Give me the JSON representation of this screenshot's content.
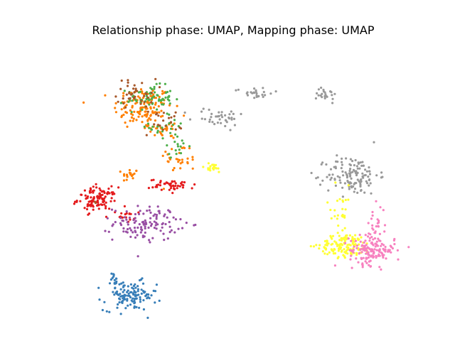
{
  "chart_data": {
    "type": "scatter",
    "title": "Relationship phase: UMAP, Mapping phase: UMAP",
    "xlabel": "",
    "ylabel": "",
    "axes_visible": false,
    "grid": false,
    "legend": "none",
    "point_size": "small",
    "xlim": [
      0,
      1
    ],
    "ylim": [
      0,
      1
    ],
    "series": [
      {
        "color": "#ff7f00",
        "clusters": [
          {
            "cx": 0.22,
            "cy": 0.76,
            "sx": 0.045,
            "sy": 0.045,
            "n": 130
          },
          {
            "cx": 0.29,
            "cy": 0.67,
            "sx": 0.03,
            "sy": 0.02,
            "n": 25
          },
          {
            "cx": 0.33,
            "cy": 0.55,
            "sx": 0.03,
            "sy": 0.03,
            "n": 30
          },
          {
            "cx": 0.18,
            "cy": 0.48,
            "sx": 0.012,
            "sy": 0.015,
            "n": 18
          }
        ]
      },
      {
        "color": "#4daf4a",
        "clusters": [
          {
            "cx": 0.24,
            "cy": 0.8,
            "sx": 0.035,
            "sy": 0.025,
            "n": 70
          },
          {
            "cx": 0.3,
            "cy": 0.68,
            "sx": 0.03,
            "sy": 0.03,
            "n": 25
          },
          {
            "cx": 0.32,
            "cy": 0.6,
            "sx": 0.02,
            "sy": 0.02,
            "n": 15
          }
        ]
      },
      {
        "color": "#a65628",
        "clusters": [
          {
            "cx": 0.2,
            "cy": 0.82,
            "sx": 0.03,
            "sy": 0.03,
            "n": 40
          },
          {
            "cx": 0.28,
            "cy": 0.7,
            "sx": 0.03,
            "sy": 0.03,
            "n": 20
          },
          {
            "cx": 0.08,
            "cy": 0.37,
            "sx": 0.01,
            "sy": 0.02,
            "n": 8
          }
        ]
      },
      {
        "color": "#e41a1c",
        "clusters": [
          {
            "cx": 0.08,
            "cy": 0.38,
            "sx": 0.03,
            "sy": 0.025,
            "n": 110
          },
          {
            "cx": 0.31,
            "cy": 0.44,
            "sx": 0.035,
            "sy": 0.012,
            "n": 45
          },
          {
            "cx": 0.17,
            "cy": 0.31,
            "sx": 0.012,
            "sy": 0.012,
            "n": 15
          }
        ]
      },
      {
        "color": "#984ea3",
        "clusters": [
          {
            "cx": 0.23,
            "cy": 0.28,
            "sx": 0.05,
            "sy": 0.035,
            "n": 120
          }
        ]
      },
      {
        "color": "#377eb8",
        "clusters": [
          {
            "cx": 0.18,
            "cy": -0.02,
            "sx": 0.04,
            "sy": 0.03,
            "n": 120
          },
          {
            "cx": 0.13,
            "cy": 0.03,
            "sx": 0.008,
            "sy": 0.03,
            "n": 15
          }
        ]
      },
      {
        "color": "#999999",
        "clusters": [
          {
            "cx": 0.45,
            "cy": 0.72,
            "sx": 0.04,
            "sy": 0.02,
            "n": 40
          },
          {
            "cx": 0.56,
            "cy": 0.82,
            "sx": 0.03,
            "sy": 0.012,
            "n": 25
          },
          {
            "cx": 0.78,
            "cy": 0.82,
            "sx": 0.015,
            "sy": 0.02,
            "n": 22
          },
          {
            "cx": 0.86,
            "cy": 0.48,
            "sx": 0.04,
            "sy": 0.04,
            "n": 130
          }
        ]
      },
      {
        "color": "#ffff33",
        "clusters": [
          {
            "cx": 0.43,
            "cy": 0.51,
            "sx": 0.02,
            "sy": 0.01,
            "n": 20
          },
          {
            "cx": 0.84,
            "cy": 0.19,
            "sx": 0.04,
            "sy": 0.025,
            "n": 130
          },
          {
            "cx": 0.82,
            "cy": 0.32,
            "sx": 0.02,
            "sy": 0.06,
            "n": 30
          }
        ]
      },
      {
        "color": "#f781bf",
        "clusters": [
          {
            "cx": 0.92,
            "cy": 0.17,
            "sx": 0.035,
            "sy": 0.03,
            "n": 150
          },
          {
            "cx": 0.93,
            "cy": 0.28,
            "sx": 0.015,
            "sy": 0.04,
            "n": 25
          }
        ]
      }
    ]
  }
}
